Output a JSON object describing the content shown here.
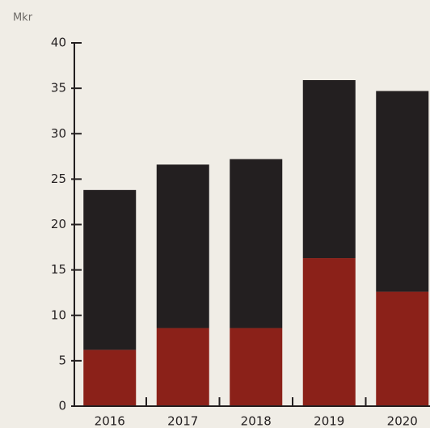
{
  "chart_data": {
    "type": "stacked_bar",
    "y_label": "Mkr",
    "categories": [
      "2016",
      "2017",
      "2018",
      "2019",
      "2020"
    ],
    "series": [
      {
        "color": "#8b2119",
        "values": [
          6.2,
          8.6,
          8.6,
          16.3,
          12.6
        ]
      },
      {
        "color": "#231f20",
        "values": [
          17.6,
          18.0,
          18.6,
          19.6,
          22.1
        ]
      }
    ],
    "ylim": [
      0,
      40
    ],
    "yticks": [
      0,
      5,
      10,
      15,
      20,
      25,
      30,
      35,
      40
    ]
  }
}
